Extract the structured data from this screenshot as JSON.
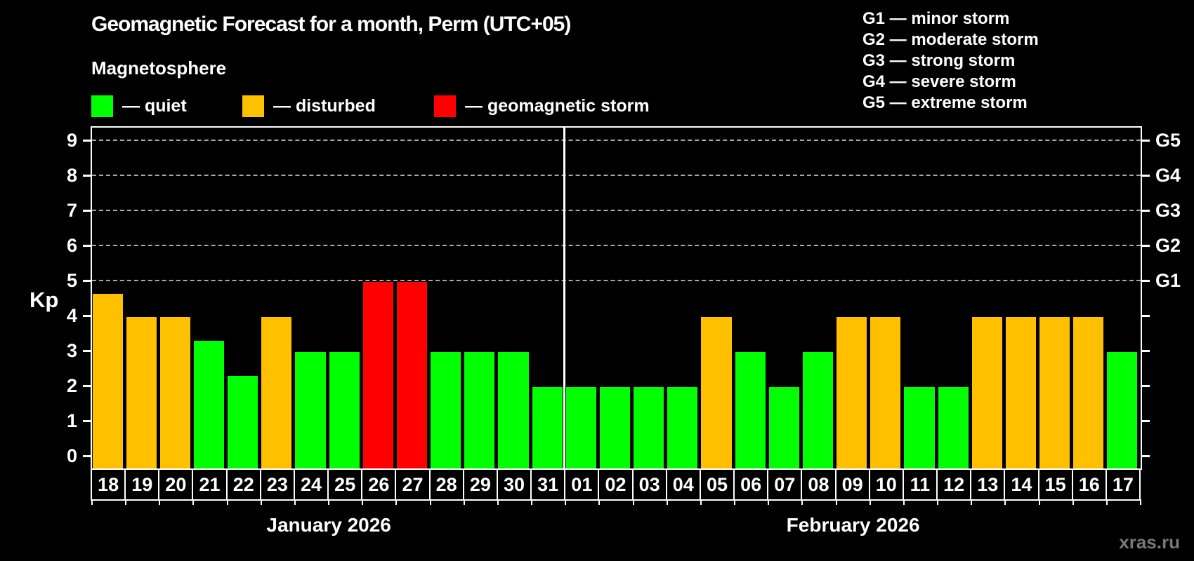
{
  "title": "Geomagnetic Forecast for a month, Perm (UTC+05)",
  "subtitle": "Magnetosphere",
  "watermark": "xras.ru",
  "legend": {
    "items": [
      {
        "name": "quiet",
        "label": "— quiet",
        "color": "#00FF00"
      },
      {
        "name": "disturbed",
        "label": "— disturbed",
        "color": "#FFC000"
      },
      {
        "name": "storm",
        "label": "— geomagnetic storm",
        "color": "#FF0000"
      }
    ]
  },
  "g_scale_legend": {
    "lines": [
      "G1 — minor storm",
      "G2 — moderate storm",
      "G3 — strong storm",
      "G4 — severe storm",
      "G5 — extreme storm"
    ]
  },
  "y_axis": {
    "label": "Kp",
    "ticks": [
      0,
      1,
      2,
      3,
      4,
      5,
      6,
      7,
      8,
      9
    ],
    "g_labels": [
      {
        "label": "G1",
        "kp": 5
      },
      {
        "label": "G2",
        "kp": 6
      },
      {
        "label": "G3",
        "kp": 7
      },
      {
        "label": "G4",
        "kp": 8
      },
      {
        "label": "G5",
        "kp": 9
      }
    ]
  },
  "chart_data": {
    "type": "bar",
    "ylabel": "Kp",
    "ylim": [
      0,
      9.7
    ],
    "grid_on": true,
    "grid_levels_kp": [
      5,
      6,
      7,
      8,
      9
    ],
    "legend_position": "top",
    "status_colors": {
      "quiet": "#00FF00",
      "disturbed": "#FFC000",
      "storm": "#FF0000"
    },
    "months": [
      {
        "label": "January 2026",
        "days": [
          {
            "day": "18",
            "kp": 4.67,
            "status": "disturbed"
          },
          {
            "day": "19",
            "kp": 4,
            "status": "disturbed"
          },
          {
            "day": "20",
            "kp": 4,
            "status": "disturbed"
          },
          {
            "day": "21",
            "kp": 3.33,
            "status": "quiet"
          },
          {
            "day": "22",
            "kp": 2.33,
            "status": "quiet"
          },
          {
            "day": "23",
            "kp": 4,
            "status": "disturbed"
          },
          {
            "day": "24",
            "kp": 3,
            "status": "quiet"
          },
          {
            "day": "25",
            "kp": 3,
            "status": "quiet"
          },
          {
            "day": "26",
            "kp": 5,
            "status": "storm"
          },
          {
            "day": "27",
            "kp": 5,
            "status": "storm"
          },
          {
            "day": "28",
            "kp": 3,
            "status": "quiet"
          },
          {
            "day": "29",
            "kp": 3,
            "status": "quiet"
          },
          {
            "day": "30",
            "kp": 3,
            "status": "quiet"
          },
          {
            "day": "31",
            "kp": 2,
            "status": "quiet"
          }
        ]
      },
      {
        "label": "February 2026",
        "days": [
          {
            "day": "01",
            "kp": 2,
            "status": "quiet"
          },
          {
            "day": "02",
            "kp": 2,
            "status": "quiet"
          },
          {
            "day": "03",
            "kp": 2,
            "status": "quiet"
          },
          {
            "day": "04",
            "kp": 2,
            "status": "quiet"
          },
          {
            "day": "05",
            "kp": 4,
            "status": "disturbed"
          },
          {
            "day": "06",
            "kp": 3,
            "status": "quiet"
          },
          {
            "day": "07",
            "kp": 2,
            "status": "quiet"
          },
          {
            "day": "08",
            "kp": 3,
            "status": "quiet"
          },
          {
            "day": "09",
            "kp": 4,
            "status": "disturbed"
          },
          {
            "day": "10",
            "kp": 4,
            "status": "disturbed"
          },
          {
            "day": "11",
            "kp": 2,
            "status": "quiet"
          },
          {
            "day": "12",
            "kp": 2,
            "status": "quiet"
          },
          {
            "day": "13",
            "kp": 4,
            "status": "disturbed"
          },
          {
            "day": "14",
            "kp": 4,
            "status": "disturbed"
          },
          {
            "day": "15",
            "kp": 4,
            "status": "disturbed"
          },
          {
            "day": "16",
            "kp": 4,
            "status": "disturbed"
          },
          {
            "day": "17",
            "kp": 3,
            "status": "quiet"
          }
        ]
      }
    ]
  }
}
